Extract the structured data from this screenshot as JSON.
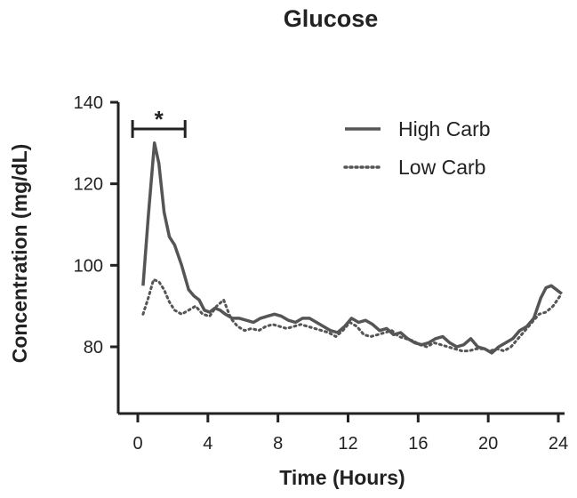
{
  "chart_data": {
    "type": "line",
    "title": "Glucose",
    "xlabel": "Time (Hours)",
    "ylabel": "Concentration (mg/dL)",
    "xlim": [
      0,
      24
    ],
    "ylim": [
      80,
      140
    ],
    "xticks": [
      0,
      4,
      8,
      12,
      16,
      20,
      24
    ],
    "yticks": [
      80,
      100,
      120,
      140
    ],
    "grid": false,
    "legend_position": "top-right",
    "annotation": {
      "text": "*",
      "x_start": -0.3,
      "x_end": 2.7
    },
    "series": [
      {
        "name": "High Carb",
        "style": "solid",
        "color": "#555555",
        "points": [
          [
            0.3,
            95
          ],
          [
            0.6,
            112
          ],
          [
            0.95,
            130
          ],
          [
            1.2,
            125
          ],
          [
            1.5,
            113
          ],
          [
            1.8,
            107
          ],
          [
            2.1,
            105
          ],
          [
            2.5,
            100
          ],
          [
            2.9,
            94
          ],
          [
            3.2,
            92.5
          ],
          [
            3.5,
            91.5
          ],
          [
            3.8,
            89
          ],
          [
            4.1,
            88.5
          ],
          [
            4.4,
            89.5
          ],
          [
            4.7,
            89
          ],
          [
            5,
            88
          ],
          [
            5.4,
            87
          ],
          [
            5.8,
            87
          ],
          [
            6.2,
            86.5
          ],
          [
            6.6,
            86
          ],
          [
            7,
            87
          ],
          [
            7.4,
            87.5
          ],
          [
            7.8,
            88
          ],
          [
            8.2,
            87.5
          ],
          [
            8.6,
            86.5
          ],
          [
            9,
            86
          ],
          [
            9.4,
            87
          ],
          [
            9.8,
            87
          ],
          [
            10.2,
            86
          ],
          [
            10.6,
            85
          ],
          [
            11,
            84
          ],
          [
            11.4,
            83.5
          ],
          [
            11.8,
            85
          ],
          [
            12.2,
            87
          ],
          [
            12.6,
            86
          ],
          [
            13,
            86.5
          ],
          [
            13.4,
            85.5
          ],
          [
            13.8,
            84
          ],
          [
            14.2,
            84.5
          ],
          [
            14.6,
            83
          ],
          [
            15,
            83.5
          ],
          [
            15.4,
            82
          ],
          [
            15.8,
            81
          ],
          [
            16.2,
            80.5
          ],
          [
            16.6,
            81
          ],
          [
            17,
            82
          ],
          [
            17.4,
            82.5
          ],
          [
            17.8,
            81
          ],
          [
            18.2,
            80
          ],
          [
            18.6,
            80.5
          ],
          [
            19,
            82
          ],
          [
            19.4,
            80
          ],
          [
            19.8,
            79.5
          ],
          [
            20.2,
            78.5
          ],
          [
            20.6,
            80
          ],
          [
            21,
            81
          ],
          [
            21.4,
            82
          ],
          [
            21.8,
            84
          ],
          [
            22.2,
            85
          ],
          [
            22.6,
            87
          ],
          [
            23,
            92
          ],
          [
            23.3,
            94.5
          ],
          [
            23.6,
            95
          ],
          [
            23.9,
            94
          ],
          [
            24.2,
            93
          ]
        ]
      },
      {
        "name": "Low Carb",
        "style": "dotted",
        "color": "#555555",
        "points": [
          [
            0.3,
            88
          ],
          [
            0.6,
            92
          ],
          [
            0.9,
            96.5
          ],
          [
            1.2,
            96
          ],
          [
            1.5,
            94
          ],
          [
            1.8,
            91
          ],
          [
            2.1,
            89
          ],
          [
            2.5,
            88
          ],
          [
            2.9,
            89
          ],
          [
            3.3,
            90
          ],
          [
            3.7,
            88
          ],
          [
            4.1,
            87.5
          ],
          [
            4.5,
            90
          ],
          [
            4.9,
            91.5
          ],
          [
            5.3,
            87
          ],
          [
            5.7,
            85
          ],
          [
            6.1,
            84
          ],
          [
            6.5,
            84.5
          ],
          [
            6.9,
            84
          ],
          [
            7.3,
            85
          ],
          [
            7.7,
            85.5
          ],
          [
            8.1,
            85
          ],
          [
            8.5,
            84.5
          ],
          [
            8.9,
            85
          ],
          [
            9.3,
            85.5
          ],
          [
            9.7,
            85
          ],
          [
            10.1,
            84.5
          ],
          [
            10.5,
            84
          ],
          [
            10.9,
            83.5
          ],
          [
            11.3,
            82.5
          ],
          [
            11.7,
            84
          ],
          [
            12.1,
            86
          ],
          [
            12.5,
            85
          ],
          [
            12.9,
            83
          ],
          [
            13.3,
            82.5
          ],
          [
            13.7,
            83
          ],
          [
            14.1,
            83.5
          ],
          [
            14.5,
            84
          ],
          [
            14.9,
            82.5
          ],
          [
            15.3,
            82
          ],
          [
            15.7,
            81.5
          ],
          [
            16.1,
            80.5
          ],
          [
            16.5,
            80
          ],
          [
            16.9,
            81
          ],
          [
            17.3,
            80.5
          ],
          [
            17.7,
            80
          ],
          [
            18.1,
            79.5
          ],
          [
            18.5,
            79
          ],
          [
            18.9,
            79
          ],
          [
            19.3,
            79.5
          ],
          [
            19.7,
            79.5
          ],
          [
            20.1,
            79
          ],
          [
            20.5,
            79.5
          ],
          [
            20.9,
            79
          ],
          [
            21.3,
            80
          ],
          [
            21.7,
            82
          ],
          [
            22.1,
            84
          ],
          [
            22.5,
            86
          ],
          [
            22.9,
            88
          ],
          [
            23.3,
            88.5
          ],
          [
            23.7,
            90
          ],
          [
            24.1,
            92.5
          ]
        ]
      }
    ]
  }
}
